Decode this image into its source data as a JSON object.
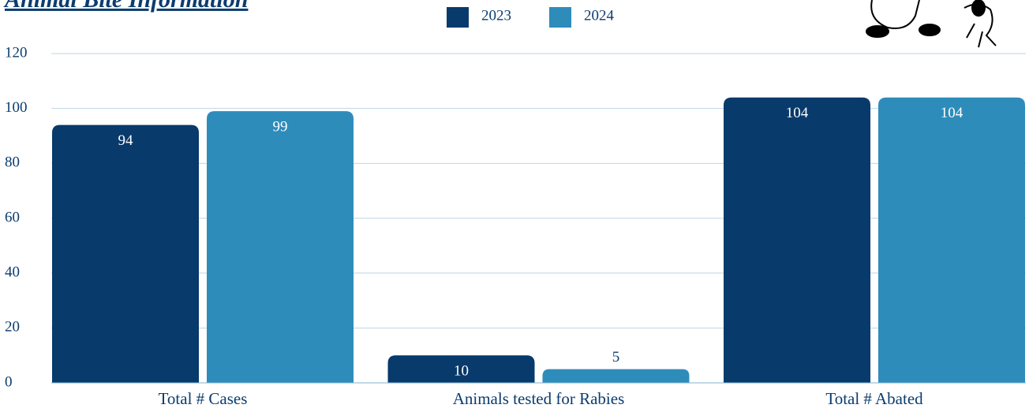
{
  "chart_data": {
    "type": "bar",
    "title": "Animal Bite Information",
    "categories": [
      "Total # Cases",
      "Animals tested for Rabies",
      "Total # Abated"
    ],
    "series": [
      {
        "name": "2023",
        "color": "#083a6b",
        "values": [
          94,
          10,
          104
        ]
      },
      {
        "name": "2024",
        "color": "#2e8cbb",
        "values": [
          99,
          5,
          104
        ]
      }
    ],
    "ylim": [
      0,
      120
    ],
    "yticks": [
      0,
      20,
      40,
      60,
      80,
      100,
      120
    ],
    "grid": true
  }
}
